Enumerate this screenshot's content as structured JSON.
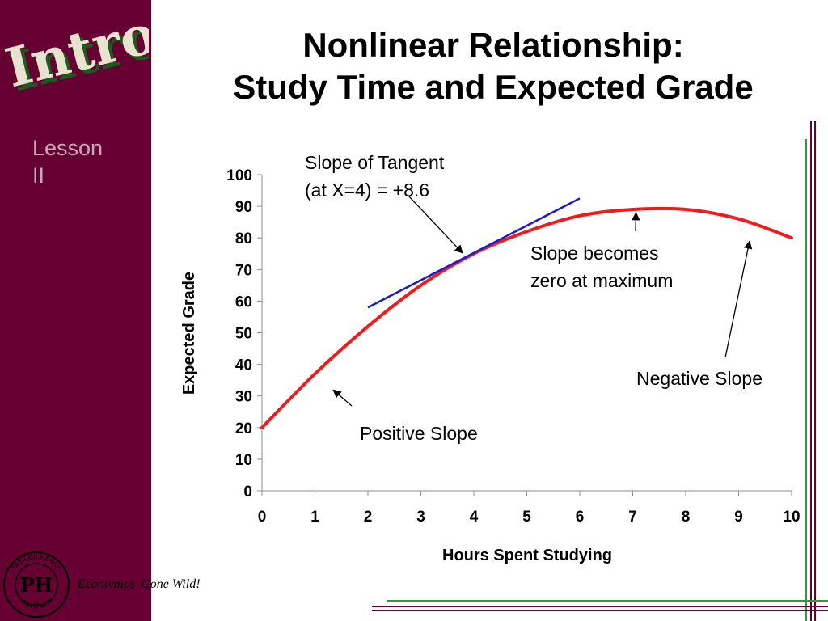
{
  "slide": {
    "logo_text": "Intro",
    "lesson_line1": "Lesson",
    "lesson_line2": "II",
    "title_line1": "Nonlinear Relationship:",
    "title_line2": "Study Time and Expected Grade",
    "footer_word1": "Economics",
    "footer_word2": "Gone Wild!",
    "seal_text_top": "PATRICK HENRY",
    "seal_text_bottom": "UNIVERSITY",
    "seal_monogram": "PH",
    "colors": {
      "sidebar": "#660033",
      "curve": "#ee1c1c",
      "tangent": "#1a1acc",
      "green_rule": "#2e9a3a",
      "maroon_rule": "#660033"
    }
  },
  "chart_data": {
    "type": "line",
    "xlabel": "Hours Spent Studying",
    "ylabel": "Expected Grade",
    "xlim": [
      0,
      10
    ],
    "ylim": [
      0,
      100
    ],
    "x_ticks": [
      0,
      1,
      2,
      3,
      4,
      5,
      6,
      7,
      8,
      9,
      10
    ],
    "y_ticks": [
      0,
      10,
      20,
      30,
      40,
      50,
      60,
      70,
      80,
      90,
      100
    ],
    "grid": false,
    "series": [
      {
        "x": [
          0,
          1,
          2,
          3,
          4,
          5,
          6,
          7,
          8,
          9,
          10
        ],
        "y": [
          20,
          37,
          52,
          65,
          75,
          82,
          87,
          89,
          89,
          86,
          80
        ]
      },
      {
        "x": [
          2,
          6
        ],
        "y": [
          58,
          92.5
        ]
      }
    ],
    "annotations": [
      {
        "text_line1": "Slope of Tangent",
        "text_line2": "(at X=4) = +8.6",
        "point": [
          4,
          77
        ]
      },
      {
        "text_line1": "Slope becomes",
        "text_line2": "zero at maximum",
        "point": [
          7,
          89
        ]
      },
      {
        "text_line1": "Negative Slope",
        "point": [
          9.2,
          81
        ]
      },
      {
        "text_line1": "Positive Slope",
        "point": [
          1.3,
          37
        ]
      }
    ]
  }
}
